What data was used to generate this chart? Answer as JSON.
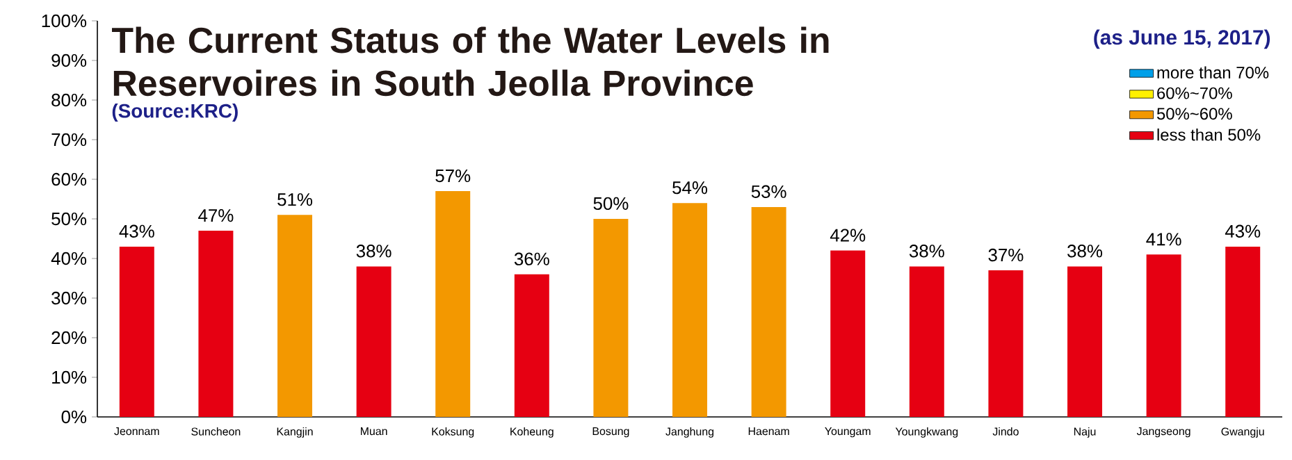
{
  "chart_data": {
    "type": "bar",
    "title": "The Current Status of the Water Levels in Reservoires in South Jeolla Province",
    "subtitle": "(Source:KRC)",
    "annotations": [
      "(as June 15, 2017)"
    ],
    "categories": [
      "Jeonnam",
      "Suncheon",
      "Kangjin",
      "Muan",
      "Koksung",
      "Koheung",
      "Bosung",
      "Janghung",
      "Haenam",
      "Youngam",
      "Youngkwang",
      "Jindo",
      "Naju",
      "Jangseong",
      "Gwangju"
    ],
    "stacked": true,
    "series": [
      {
        "name": "more than 70%",
        "color": "#00a0e9",
        "values": [
          null,
          null,
          null,
          null,
          null,
          null,
          null,
          null,
          null,
          null,
          null,
          null,
          null,
          null,
          null
        ]
      },
      {
        "name": "60%~70%",
        "color": "#fff100",
        "values": [
          null,
          null,
          null,
          null,
          null,
          null,
          null,
          null,
          null,
          null,
          null,
          null,
          null,
          null,
          null
        ]
      },
      {
        "name": "50%~60%",
        "color": "#f39800",
        "values": [
          null,
          null,
          51,
          null,
          57,
          null,
          50,
          54,
          53,
          null,
          null,
          null,
          null,
          null,
          null
        ],
        "value_labels": [
          null,
          null,
          "51%",
          null,
          "57%",
          null,
          "50%",
          "54%",
          "53%",
          null,
          null,
          null,
          null,
          null,
          null
        ]
      },
      {
        "name": "less than 50%",
        "color": "#e60012",
        "values": [
          43,
          47,
          null,
          38,
          null,
          36,
          null,
          null,
          null,
          42,
          38,
          37,
          38,
          41,
          43
        ],
        "value_labels": [
          "43%",
          "47%",
          null,
          "38%",
          null,
          "36%",
          null,
          null,
          null,
          "42%",
          "38%",
          "37%",
          "38%",
          "41%",
          "43%"
        ]
      }
    ],
    "ylim": [
      0,
      100
    ],
    "yticks": [
      {
        "value": 0,
        "label": "0%"
      },
      {
        "value": 10,
        "label": "10%"
      },
      {
        "value": 20,
        "label": "20%"
      },
      {
        "value": 30,
        "label": "30%"
      },
      {
        "value": 40,
        "label": "40%"
      },
      {
        "value": 50,
        "label": "50%"
      },
      {
        "value": 60,
        "label": "60%"
      },
      {
        "value": 70,
        "label": "70%"
      },
      {
        "value": 80,
        "label": "80%"
      },
      {
        "value": 90,
        "label": "90%"
      },
      {
        "value": 100,
        "label": "100%"
      }
    ],
    "legend": "top right"
  }
}
